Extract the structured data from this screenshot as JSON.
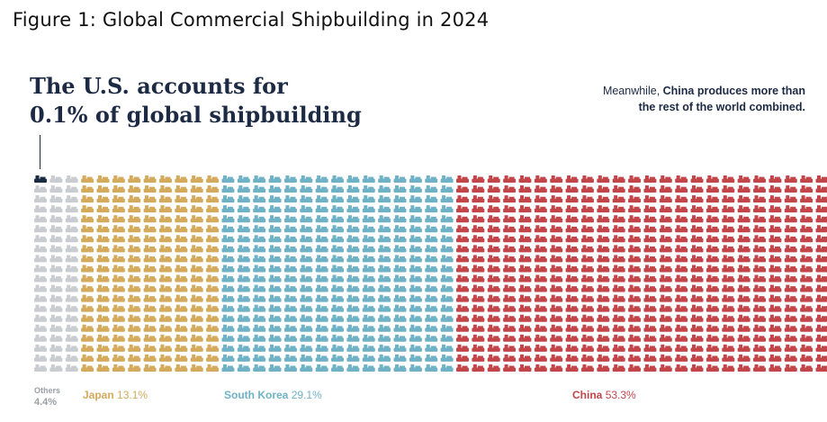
{
  "figure_title": "Figure 1: Global Commercial Shipbuilding in 2024",
  "headline": {
    "line1": "The U.S. accounts for",
    "line2": "0.1% of global shipbuilding"
  },
  "callout": {
    "pre": "Meanwhile, ",
    "bold": "China produces more than the rest of the world combined."
  },
  "colors": {
    "us": "#1d2a44",
    "others": "#c9ccd1",
    "japan": "#d4aa5c",
    "south_korea": "#6fb2c6",
    "china": "#c2454a"
  },
  "icon_name": "ship-icon",
  "chart_data": {
    "type": "waffle",
    "title": "The U.S. accounts for 0.1% of global shipbuilding",
    "unit": "share of global commercial shipbuilding (%)",
    "categories": [
      {
        "key": "us",
        "name": "U.S.",
        "value": 0.1,
        "label_shown": false
      },
      {
        "key": "others",
        "name": "Others",
        "value": 4.4,
        "value_label": "4.4%"
      },
      {
        "key": "japan",
        "name": "Japan",
        "value": 13.1,
        "value_label": "13.1%"
      },
      {
        "key": "south_korea",
        "name": "South Korea",
        "value": 29.1,
        "value_label": "29.1%"
      },
      {
        "key": "china",
        "name": "China",
        "value": 53.3,
        "value_label": "53.3%"
      }
    ],
    "columns_per_category": {
      "others": 3,
      "japan": 9,
      "south_korea": 15,
      "china": 25
    },
    "rows": 20,
    "us_icons": 1
  }
}
